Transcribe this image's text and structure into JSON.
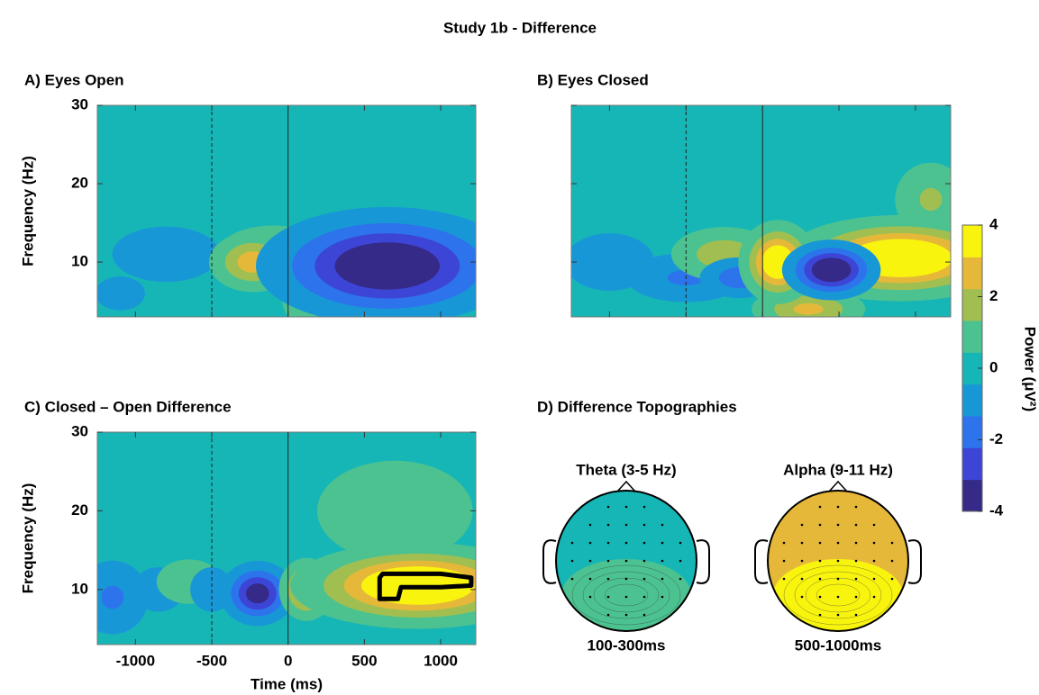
{
  "title": "Study 1b - Difference",
  "chart_data": [
    {
      "type": "heatmap",
      "title": "A) Eyes Open",
      "ylabel": "Frequency (Hz)",
      "xlim": [
        -1250,
        1230
      ],
      "ylim": [
        3,
        30
      ],
      "xticks": [
        -1000,
        -500,
        0,
        500,
        1000
      ],
      "yticks": [
        10,
        20,
        30
      ],
      "xtick_labels": false,
      "ytick_labels": true,
      "baseline": 0,
      "vlines": [
        {
          "value": -500,
          "style": "dashed"
        },
        {
          "value": 0,
          "style": "solid"
        }
      ],
      "blobs": [
        {
          "time": -800,
          "freq": 11,
          "time_span": 250,
          "freq_span": 2.5,
          "power": -1.2
        },
        {
          "time": -1100,
          "freq": 6,
          "time_span": 150,
          "freq_span": 2,
          "power": -0.8
        },
        {
          "time": -100,
          "freq": 11,
          "time_span": 250,
          "freq_span": 2.5,
          "power": 1.3
        },
        {
          "time": -230,
          "freq": 10,
          "time_span": 150,
          "freq_span": 2,
          "power": 2.8
        },
        {
          "time": 150,
          "freq": 5,
          "time_span": 120,
          "freq_span": 2,
          "power": 1.5
        },
        {
          "time": 1000,
          "freq": 8,
          "time_span": 250,
          "freq_span": 3,
          "power": -1.2
        },
        {
          "time": 650,
          "freq": 9.5,
          "time_span": 400,
          "freq_span": 3.5,
          "power": -4.5
        }
      ]
    },
    {
      "type": "heatmap",
      "title": "B) Eyes Closed",
      "xlim": [
        -1250,
        1230
      ],
      "ylim": [
        3,
        30
      ],
      "xticks": [
        -1000,
        -500,
        0,
        500,
        1000
      ],
      "yticks": [
        10,
        20,
        30
      ],
      "xtick_labels": false,
      "ytick_labels": false,
      "baseline": 0,
      "vlines": [
        {
          "value": -500,
          "style": "dashed"
        },
        {
          "value": 0,
          "style": "solid"
        }
      ],
      "blobs": [
        {
          "time": -1000,
          "freq": 10,
          "time_span": 200,
          "freq_span": 2.5,
          "power": -1.3
        },
        {
          "time": -500,
          "freq": 8,
          "time_span": 250,
          "freq_span": 2,
          "power": -1.5
        },
        {
          "time": 1100,
          "freq": 18,
          "time_span": 150,
          "freq_span": 3,
          "power": 1.5
        },
        {
          "time": -250,
          "freq": 11,
          "time_span": 200,
          "freq_span": 2,
          "power": 2
        },
        {
          "time": -150,
          "freq": 8,
          "time_span": 150,
          "freq_span": 1.5,
          "power": -2
        },
        {
          "time": 300,
          "freq": 4,
          "time_span": 200,
          "freq_span": 1.5,
          "power": 2.5
        },
        {
          "time": 900,
          "freq": 10.5,
          "time_span": 350,
          "freq_span": 2.5,
          "power": 5
        },
        {
          "time": 100,
          "freq": 10,
          "time_span": 120,
          "freq_span": 2.5,
          "power": 4.5
        },
        {
          "time": 450,
          "freq": 9,
          "time_span": 150,
          "freq_span": 1.8,
          "power": -4.5
        }
      ]
    },
    {
      "type": "heatmap",
      "title": "C) Closed – Open Difference",
      "ylabel": "Frequency (Hz)",
      "xlabel": "Time (ms)",
      "xlim": [
        -1250,
        1230
      ],
      "ylim": [
        3,
        30
      ],
      "xticks": [
        -1000,
        -500,
        0,
        500,
        1000
      ],
      "yticks": [
        10,
        20,
        30
      ],
      "xtick_labels": true,
      "ytick_labels": true,
      "baseline": 0,
      "vlines": [
        {
          "value": -500,
          "style": "dashed"
        },
        {
          "value": 0,
          "style": "solid"
        }
      ],
      "blobs": [
        {
          "time": 700,
          "freq": 20,
          "time_span": 400,
          "freq_span": 5,
          "power": 1
        },
        {
          "time": -1150,
          "freq": 9,
          "time_span": 150,
          "freq_span": 3,
          "power": -1.5
        },
        {
          "time": -850,
          "freq": 10,
          "time_span": 120,
          "freq_span": 2,
          "power": -1.2
        },
        {
          "time": -650,
          "freq": 11,
          "time_span": 150,
          "freq_span": 2,
          "power": 1.2
        },
        {
          "time": -500,
          "freq": 10,
          "time_span": 100,
          "freq_span": 2,
          "power": -1.2
        },
        {
          "time": -200,
          "freq": 9.5,
          "time_span": 120,
          "freq_span": 2,
          "power": -3.8
        },
        {
          "time": 120,
          "freq": 10,
          "time_span": 90,
          "freq_span": 2,
          "power": 3.3
        },
        {
          "time": 850,
          "freq": 10.5,
          "time_span": 380,
          "freq_span": 2.5,
          "power": 5
        }
      ],
      "cluster": {
        "time": [
          600,
          620,
          1000,
          1200,
          1200,
          1000,
          740,
          720,
          600
        ],
        "freq": [
          11.5,
          12,
          12,
          11.5,
          10.5,
          10.3,
          10.3,
          8.8,
          8.8
        ]
      }
    },
    {
      "type": "topography",
      "title": "D) Difference Topographies",
      "maps": [
        {
          "band": "Theta (3-5 Hz)",
          "window": "100-300ms",
          "power": 0,
          "peak_power": 0.8
        },
        {
          "band": "Alpha (9-11 Hz)",
          "window": "500-1000ms",
          "power": 2.5,
          "peak_power": 4
        }
      ]
    }
  ],
  "colorbar": {
    "label": "Power (μV²)",
    "clim": [
      -4,
      4
    ],
    "ticks": [
      -4,
      -2,
      0,
      2,
      4
    ],
    "colors": [
      "#352a87",
      "#3d45d6",
      "#2c73ec",
      "#1897d6",
      "#17b6b6",
      "#4cc290",
      "#a0bf50",
      "#e6b83a",
      "#f9f40e"
    ]
  }
}
